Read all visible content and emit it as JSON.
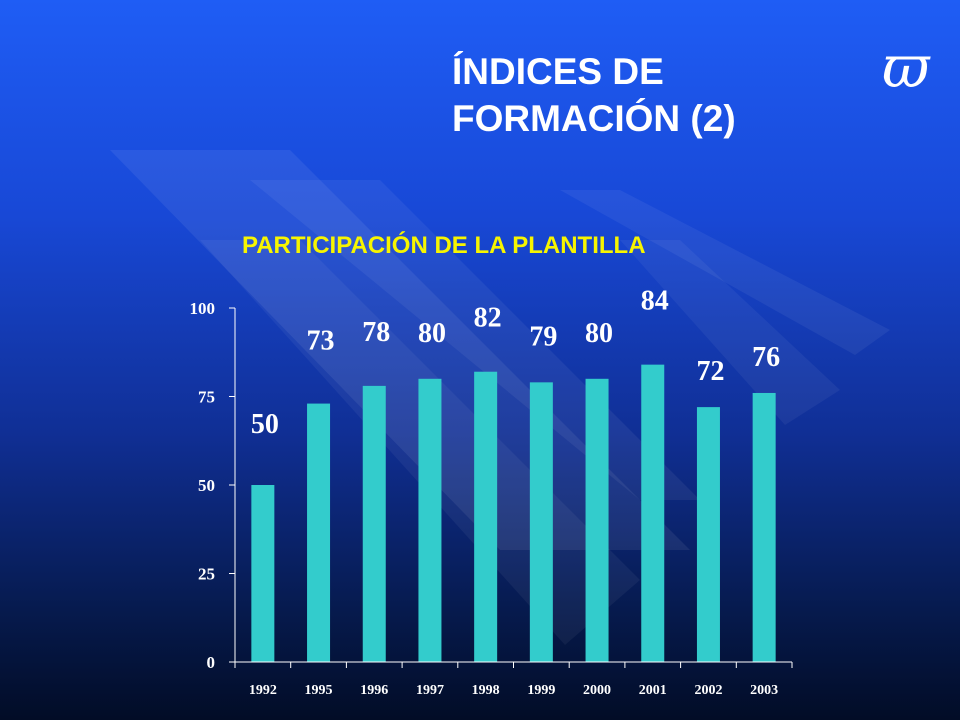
{
  "slide": {
    "title_line1": "ÍNDICES DE",
    "title_line2": "FORMACIÓN (2)",
    "logo_glyph": "ϖ",
    "subtitle": "PARTICIPACIÓN  DE LA PLANTILLA"
  },
  "colors": {
    "bar": "#33cccc",
    "axis": "#ffffff",
    "text": "#ffffff",
    "subtitle": "#f7f500",
    "background_top": "#1f5df5",
    "background_bottom": "#020c26"
  },
  "chart_data": {
    "type": "bar",
    "categories": [
      "1992",
      "1995",
      "1996",
      "1997",
      "1998",
      "1999",
      "2000",
      "2001",
      "2002",
      "2003"
    ],
    "values": [
      50,
      73,
      78,
      80,
      82,
      79,
      80,
      84,
      72,
      76
    ],
    "title": "PARTICIPACIÓN  DE LA PLANTILLA",
    "xlabel": "",
    "ylabel": "",
    "ylim": [
      0,
      100
    ],
    "yticks": [
      0,
      25,
      50,
      75,
      100
    ],
    "grid": false,
    "legend": "none",
    "data_labels": true
  }
}
